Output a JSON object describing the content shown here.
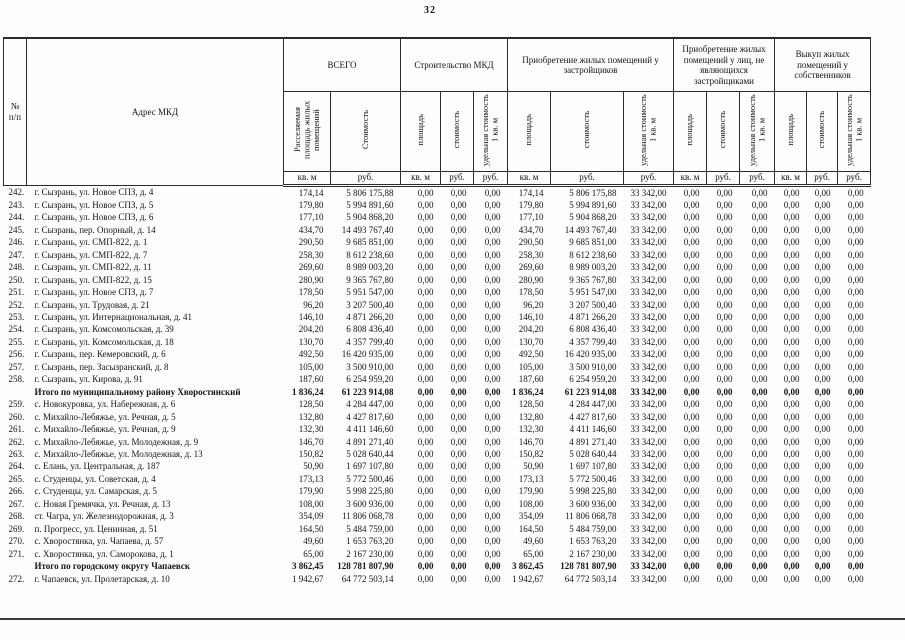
{
  "page": {
    "number": "32"
  },
  "table": {
    "corner": {
      "num": "№ п/п",
      "address": "Адрес МКД"
    },
    "groups": [
      {
        "label": "ВСЕГО",
        "sub": [
          "Расселяемая площадь жилых помещений",
          "Стоимость"
        ],
        "units": [
          "кв. м",
          "руб."
        ]
      },
      {
        "label": "Строительство МКД",
        "sub": [
          "площадь",
          "стоимость",
          "удельная стоимость 1 кв. м"
        ],
        "units": [
          "кв. м",
          "руб.",
          "руб."
        ]
      },
      {
        "label": "Приобретение жилых помещений у застройщиков",
        "sub": [
          "площадь",
          "стоимость",
          "удельная стоимость 1 кв. м"
        ],
        "units": [
          "кв. м",
          "руб.",
          "руб."
        ]
      },
      {
        "label": "Приобретение жилых помещений у лиц, не являющихся застройщиками",
        "sub": [
          "площадь",
          "стоимость",
          "удельная стоимость 1 кв. м"
        ],
        "units": [
          "кв. м",
          "руб.",
          "руб."
        ]
      },
      {
        "label": "Выкуп жилых помещений у собственников",
        "sub": [
          "площадь",
          "стоимость",
          "удельная стоимость 1 кв. м"
        ],
        "units": [
          "кв. м",
          "руб.",
          "руб."
        ]
      }
    ],
    "rows": [
      {
        "num": "242.",
        "address": "г. Сызрань, ул. Новое СПЗ, д. 4",
        "bold": false,
        "values": [
          "174,14",
          "5 806 175,88",
          "0,00",
          "0,00",
          "0,00",
          "174,14",
          "5 806 175,88",
          "33 342,00",
          "0,00",
          "0,00",
          "0,00",
          "0,00",
          "0,00",
          "0,00"
        ]
      },
      {
        "num": "243.",
        "address": "г. Сызрань, ул. Новое СПЗ, д. 5",
        "bold": false,
        "values": [
          "179,80",
          "5 994 891,60",
          "0,00",
          "0,00",
          "0,00",
          "179,80",
          "5 994 891,60",
          "33 342,00",
          "0,00",
          "0,00",
          "0,00",
          "0,00",
          "0,00",
          "0,00"
        ]
      },
      {
        "num": "244.",
        "address": "г. Сызрань, ул. Новое СПЗ, д. 6",
        "bold": false,
        "values": [
          "177,10",
          "5 904 868,20",
          "0,00",
          "0,00",
          "0,00",
          "177,10",
          "5 904 868,20",
          "33 342,00",
          "0,00",
          "0,00",
          "0,00",
          "0,00",
          "0,00",
          "0,00"
        ]
      },
      {
        "num": "245.",
        "address": "г. Сызрань, пер. Опорный, д. 14",
        "bold": false,
        "values": [
          "434,70",
          "14 493 767,40",
          "0,00",
          "0,00",
          "0,00",
          "434,70",
          "14 493 767,40",
          "33 342,00",
          "0,00",
          "0,00",
          "0,00",
          "0,00",
          "0,00",
          "0,00"
        ]
      },
      {
        "num": "246.",
        "address": "г. Сызрань, ул. СМП-822, д. 1",
        "bold": false,
        "values": [
          "290,50",
          "9 685 851,00",
          "0,00",
          "0,00",
          "0,00",
          "290,50",
          "9 685 851,00",
          "33 342,00",
          "0,00",
          "0,00",
          "0,00",
          "0,00",
          "0,00",
          "0,00"
        ]
      },
      {
        "num": "247.",
        "address": "г. Сызрань, ул. СМП-822, д. 7",
        "bold": false,
        "values": [
          "258,30",
          "8 612 238,60",
          "0,00",
          "0,00",
          "0,00",
          "258,30",
          "8 612 238,60",
          "33 342,00",
          "0,00",
          "0,00",
          "0,00",
          "0,00",
          "0,00",
          "0,00"
        ]
      },
      {
        "num": "248.",
        "address": "г. Сызрань, ул. СМП-822, д. 11",
        "bold": false,
        "values": [
          "269,60",
          "8 989 003,20",
          "0,00",
          "0,00",
          "0,00",
          "269,60",
          "8 989 003,20",
          "33 342,00",
          "0,00",
          "0,00",
          "0,00",
          "0,00",
          "0,00",
          "0,00"
        ]
      },
      {
        "num": "250.",
        "address": "г. Сызрань, ул. СМП-822, д. 15",
        "bold": false,
        "values": [
          "280,90",
          "9 365 767,80",
          "0,00",
          "0,00",
          "0,00",
          "280,90",
          "9 365 767,80",
          "33 342,00",
          "0,00",
          "0,00",
          "0,00",
          "0,00",
          "0,00",
          "0,00"
        ]
      },
      {
        "num": "251.",
        "address": "г. Сызрань, ул. Новое СПЗ, д. 7",
        "bold": false,
        "values": [
          "178,50",
          "5 951 547,00",
          "0,00",
          "0,00",
          "0,00",
          "178,50",
          "5 951 547,00",
          "33 342,00",
          "0,00",
          "0,00",
          "0,00",
          "0,00",
          "0,00",
          "0,00"
        ]
      },
      {
        "num": "252.",
        "address": "г. Сызрань, ул. Трудовая, д. 21",
        "bold": false,
        "values": [
          "96,20",
          "3 207 500,40",
          "0,00",
          "0,00",
          "0,00",
          "96,20",
          "3 207 500,40",
          "33 342,00",
          "0,00",
          "0,00",
          "0,00",
          "0,00",
          "0,00",
          "0,00"
        ]
      },
      {
        "num": "253.",
        "address": "г. Сызрань, ул. Интернациональная, д. 41",
        "bold": false,
        "values": [
          "146,10",
          "4 871 266,20",
          "0,00",
          "0,00",
          "0,00",
          "146,10",
          "4 871 266,20",
          "33 342,00",
          "0,00",
          "0,00",
          "0,00",
          "0,00",
          "0,00",
          "0,00"
        ]
      },
      {
        "num": "254.",
        "address": "г. Сызрань, ул. Комсомольская, д. 39",
        "bold": false,
        "values": [
          "204,20",
          "6 808 436,40",
          "0,00",
          "0,00",
          "0,00",
          "204,20",
          "6 808 436,40",
          "33 342,00",
          "0,00",
          "0,00",
          "0,00",
          "0,00",
          "0,00",
          "0,00"
        ]
      },
      {
        "num": "255.",
        "address": "г. Сызрань, ул. Комсомольская, д. 18",
        "bold": false,
        "values": [
          "130,70",
          "4 357 799,40",
          "0,00",
          "0,00",
          "0,00",
          "130,70",
          "4 357 799,40",
          "33 342,00",
          "0,00",
          "0,00",
          "0,00",
          "0,00",
          "0,00",
          "0,00"
        ]
      },
      {
        "num": "256.",
        "address": "г. Сызрань, пер. Кемеровский, д. 6",
        "bold": false,
        "values": [
          "492,50",
          "16 420 935,00",
          "0,00",
          "0,00",
          "0,00",
          "492,50",
          "16 420 935,00",
          "33 342,00",
          "0,00",
          "0,00",
          "0,00",
          "0,00",
          "0,00",
          "0,00"
        ]
      },
      {
        "num": "257.",
        "address": "г. Сызрань, пер. Засызранский, д. 8",
        "bold": false,
        "values": [
          "105,00",
          "3 500 910,00",
          "0,00",
          "0,00",
          "0,00",
          "105,00",
          "3 500 910,00",
          "33 342,00",
          "0,00",
          "0,00",
          "0,00",
          "0,00",
          "0,00",
          "0,00"
        ]
      },
      {
        "num": "258.",
        "address": "г. Сызрань, ул. Кирова, д. 91",
        "bold": false,
        "values": [
          "187,60",
          "6 254 959,20",
          "0,00",
          "0,00",
          "0,00",
          "187,60",
          "6 254 959,20",
          "33 342,00",
          "0,00",
          "0,00",
          "0,00",
          "0,00",
          "0,00",
          "0,00"
        ]
      },
      {
        "num": "",
        "address": "Итого по муниципальному району Хворостянский",
        "bold": true,
        "values": [
          "1 836,24",
          "61 223 914,08",
          "0,00",
          "0,00",
          "0,00",
          "1 836,24",
          "61 223 914,08",
          "33 342,00",
          "0,00",
          "0,00",
          "0,00",
          "0,00",
          "0,00",
          "0,00"
        ]
      },
      {
        "num": "259.",
        "address": "с. Новокуровка, ул. Набережная, д. 6",
        "bold": false,
        "values": [
          "128,50",
          "4 284 447,00",
          "0,00",
          "0,00",
          "0,00",
          "128,50",
          "4 284 447,00",
          "33 342,00",
          "0,00",
          "0,00",
          "0,00",
          "0,00",
          "0,00",
          "0,00"
        ]
      },
      {
        "num": "260.",
        "address": "с. Михайло-Лебяжье, ул. Речная, д. 5",
        "bold": false,
        "values": [
          "132,80",
          "4 427 817,60",
          "0,00",
          "0,00",
          "0,00",
          "132,80",
          "4 427 817,60",
          "33 342,00",
          "0,00",
          "0,00",
          "0,00",
          "0,00",
          "0,00",
          "0,00"
        ]
      },
      {
        "num": "261.",
        "address": "с. Михайло-Лебяжье, ул. Речная, д. 9",
        "bold": false,
        "values": [
          "132,30",
          "4 411 146,60",
          "0,00",
          "0,00",
          "0,00",
          "132,30",
          "4 411 146,60",
          "33 342,00",
          "0,00",
          "0,00",
          "0,00",
          "0,00",
          "0,00",
          "0,00"
        ]
      },
      {
        "num": "262.",
        "address": "с. Михайло-Лебяжье, ул. Молодежная, д. 9",
        "bold": false,
        "values": [
          "146,70",
          "4 891 271,40",
          "0,00",
          "0,00",
          "0,00",
          "146,70",
          "4 891 271,40",
          "33 342,00",
          "0,00",
          "0,00",
          "0,00",
          "0,00",
          "0,00",
          "0,00"
        ]
      },
      {
        "num": "263.",
        "address": "с. Михайло-Лебяжье, ул. Молодежная, д. 13",
        "bold": false,
        "values": [
          "150,82",
          "5 028 640,44",
          "0,00",
          "0,00",
          "0,00",
          "150,82",
          "5 028 640,44",
          "33 342,00",
          "0,00",
          "0,00",
          "0,00",
          "0,00",
          "0,00",
          "0,00"
        ]
      },
      {
        "num": "264.",
        "address": "с. Елань, ул. Центральная, д. 187",
        "bold": false,
        "values": [
          "50,90",
          "1 697 107,80",
          "0,00",
          "0,00",
          "0,00",
          "50,90",
          "1 697 107,80",
          "33 342,00",
          "0,00",
          "0,00",
          "0,00",
          "0,00",
          "0,00",
          "0,00"
        ]
      },
      {
        "num": "265.",
        "address": "с. Студенцы, ул. Советская, д. 4",
        "bold": false,
        "values": [
          "173,13",
          "5 772 500,46",
          "0,00",
          "0,00",
          "0,00",
          "173,13",
          "5 772 500,46",
          "33 342,00",
          "0,00",
          "0,00",
          "0,00",
          "0,00",
          "0,00",
          "0,00"
        ]
      },
      {
        "num": "266.",
        "address": "с. Студенцы, ул. Самарская, д. 5",
        "bold": false,
        "values": [
          "179,90",
          "5 998 225,80",
          "0,00",
          "0,00",
          "0,00",
          "179,90",
          "5 998 225,80",
          "33 342,00",
          "0,00",
          "0,00",
          "0,00",
          "0,00",
          "0,00",
          "0,00"
        ]
      },
      {
        "num": "267.",
        "address": "с. Новая Гремячка, ул. Речная, д. 13",
        "bold": false,
        "values": [
          "108,00",
          "3 600 936,00",
          "0,00",
          "0,00",
          "0,00",
          "108,00",
          "3 600 936,00",
          "33 342,00",
          "0,00",
          "0,00",
          "0,00",
          "0,00",
          "0,00",
          "0,00"
        ]
      },
      {
        "num": "268.",
        "address": "ст. Чагра, ул. Железнодорожная, д. 3",
        "bold": false,
        "values": [
          "354,09",
          "11 806 068,78",
          "0,00",
          "0,00",
          "0,00",
          "354,09",
          "11 806 068,78",
          "33 342,00",
          "0,00",
          "0,00",
          "0,00",
          "0,00",
          "0,00",
          "0,00"
        ]
      },
      {
        "num": "269.",
        "address": "п. Прогресс, ул. Ценинная, д. 51",
        "bold": false,
        "values": [
          "164,50",
          "5 484 759,00",
          "0,00",
          "0,00",
          "0,00",
          "164,50",
          "5 484 759,00",
          "33 342,00",
          "0,00",
          "0,00",
          "0,00",
          "0,00",
          "0,00",
          "0,00"
        ]
      },
      {
        "num": "270.",
        "address": "с. Хворостянка, ул. Чапаева, д. 57",
        "bold": false,
        "values": [
          "49,60",
          "1 653 763,20",
          "0,00",
          "0,00",
          "0,00",
          "49,60",
          "1 653 763,20",
          "33 342,00",
          "0,00",
          "0,00",
          "0,00",
          "0,00",
          "0,00",
          "0,00"
        ]
      },
      {
        "num": "271.",
        "address": "с. Хворостянка, ул. Саморокова, д. 1",
        "bold": false,
        "values": [
          "65,00",
          "2 167 230,00",
          "0,00",
          "0,00",
          "0,00",
          "65,00",
          "2 167 230,00",
          "33 342,00",
          "0,00",
          "0,00",
          "0,00",
          "0,00",
          "0,00",
          "0,00"
        ]
      },
      {
        "num": "",
        "address": "Итого по городскому округу Чапаевск",
        "bold": true,
        "values": [
          "3 862,45",
          "128 781 807,90",
          "0,00",
          "0,00",
          "0,00",
          "3 862,45",
          "128 781 807,90",
          "33 342,00",
          "0,00",
          "0,00",
          "0,00",
          "0,00",
          "0,00",
          "0,00"
        ]
      },
      {
        "num": "272.",
        "address": "г. Чапаевск, ул. Пролетарская, д. 10",
        "bold": false,
        "values": [
          "1 942,67",
          "64 772 503,14",
          "0,00",
          "0,00",
          "0,00",
          "1 942,67",
          "64 772 503,14",
          "33 342,00",
          "0,00",
          "0,00",
          "0,00",
          "0,00",
          "0,00",
          "0,00"
        ]
      }
    ]
  }
}
